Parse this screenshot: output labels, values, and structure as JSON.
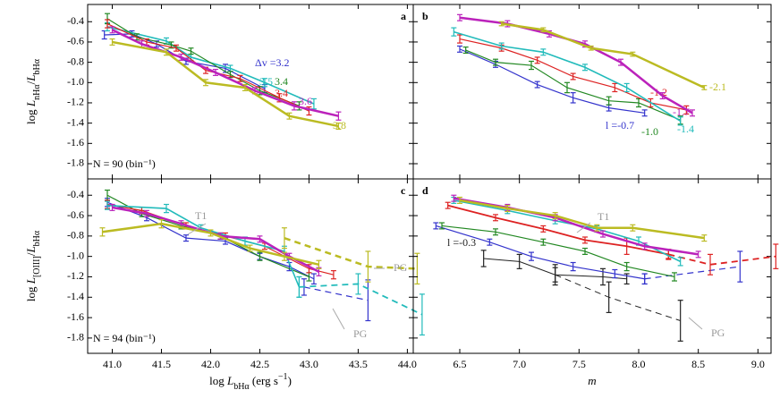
{
  "chart_data": [
    {
      "type": "line",
      "label": "a",
      "note": "N = 90 (bin⁻¹)",
      "ylim": [
        -1.95,
        -0.23
      ],
      "xlim": [
        40.75,
        44.06
      ],
      "yticks": [
        -0.4,
        -0.6,
        -0.8,
        {
          "value": -1.0,
          "label": "-1.0"
        },
        -1.2,
        -1.4,
        -1.6,
        -1.8
      ],
      "ylabel": [
        "log ",
        "L",
        "nHα",
        "/",
        "L",
        "bHα"
      ],
      "series": [
        {
          "name": "Δv =3.2",
          "color": "#3333cc",
          "linewidth": 1.2,
          "x": [
            40.92,
            41.2,
            41.45,
            41.75,
            42.15,
            42.55
          ],
          "values": [
            -0.53,
            -0.52,
            -0.62,
            -0.79,
            -0.86,
            -1.06
          ],
          "errors": [
            0.04,
            0.03,
            0.03,
            0.03,
            0.04,
            0.04
          ]
        },
        {
          "name": "3.5",
          "color": "#22bbbb",
          "linewidth": 1.6,
          "x": [
            40.95,
            41.55,
            41.8,
            42.2,
            42.55,
            43.05
          ],
          "values": [
            -0.45,
            -0.59,
            -0.75,
            -0.86,
            -1.0,
            -1.21
          ],
          "errors": [
            0.04,
            0.03,
            0.03,
            0.03,
            0.04,
            0.05
          ]
        },
        {
          "name": "3.4",
          "color": "#228822",
          "linewidth": 1.2,
          "x": [
            40.95,
            41.25,
            41.6,
            41.8,
            42.2,
            42.5,
            42.9
          ],
          "values": [
            -0.37,
            -0.55,
            -0.63,
            -0.69,
            -0.92,
            -1.08,
            -1.23
          ],
          "errors": [
            0.05,
            0.03,
            0.03,
            0.03,
            0.03,
            0.04,
            0.04
          ]
        },
        {
          "name": "3.4",
          "color": "#dd2222",
          "linewidth": 1.2,
          "x": [
            40.95,
            41.35,
            41.65,
            41.95,
            42.3,
            42.7,
            43.0
          ],
          "values": [
            -0.42,
            -0.6,
            -0.66,
            -0.88,
            -0.96,
            -1.15,
            -1.28
          ],
          "errors": [
            0.04,
            0.03,
            0.03,
            0.03,
            0.03,
            0.04,
            0.04
          ]
        },
        {
          "name": "3.6",
          "color": "#bb22bb",
          "linewidth": 2.5,
          "x": [
            41.0,
            41.3,
            41.7,
            42.05,
            42.45,
            42.85,
            43.3
          ],
          "values": [
            -0.48,
            -0.62,
            -0.75,
            -0.9,
            -1.08,
            -1.23,
            -1.33
          ],
          "errors": [
            0.03,
            0.03,
            0.03,
            0.03,
            0.03,
            0.04,
            0.04
          ]
        },
        {
          "name": "3.8",
          "color": "#bbbb22",
          "linewidth": 2.5,
          "x": [
            41.0,
            41.55,
            41.95,
            42.35,
            42.8,
            43.3
          ],
          "values": [
            -0.6,
            -0.7,
            -1.0,
            -1.05,
            -1.33,
            -1.43
          ],
          "errors": [
            0.03,
            0.03,
            0.03,
            0.03,
            0.03,
            0.03
          ]
        }
      ]
    },
    {
      "type": "line",
      "label": "b",
      "ylim": [
        -1.95,
        -0.23
      ],
      "xlim": [
        6.11,
        9.11
      ],
      "series": [
        {
          "name": "l =-0.7",
          "color": "#3333cc",
          "linewidth": 1.2,
          "x": [
            6.5,
            6.8,
            7.15,
            7.45,
            7.75,
            8.05
          ],
          "values": [
            -0.67,
            -0.82,
            -1.02,
            -1.15,
            -1.25,
            -1.3
          ],
          "errors": [
            0.03,
            0.03,
            0.03,
            0.05,
            0.03,
            0.03
          ]
        },
        {
          "name": "-1.0",
          "color": "#228822",
          "linewidth": 1.2,
          "x": [
            6.55,
            6.8,
            7.1,
            7.4,
            7.75,
            8.0,
            8.35
          ],
          "values": [
            -0.68,
            -0.8,
            -0.83,
            -1.05,
            -1.18,
            -1.2,
            -1.37
          ],
          "errors": [
            0.03,
            0.03,
            0.04,
            0.05,
            0.04,
            0.04,
            0.04
          ]
        },
        {
          "name": "-1.2",
          "color": "#dd2222",
          "linewidth": 1.2,
          "x": [
            6.5,
            6.85,
            7.15,
            7.45,
            7.8,
            8.1,
            8.4
          ],
          "values": [
            -0.57,
            -0.66,
            -0.78,
            -0.94,
            -1.05,
            -1.2,
            -1.27
          ],
          "errors": [
            0.04,
            0.03,
            0.03,
            0.03,
            0.04,
            0.04,
            0.04
          ]
        },
        {
          "name": "-1.4",
          "color": "#22bbbb",
          "linewidth": 1.6,
          "x": [
            6.45,
            6.85,
            7.2,
            7.55,
            7.9,
            8.35
          ],
          "values": [
            -0.5,
            -0.64,
            -0.7,
            -0.85,
            -1.05,
            -1.38
          ],
          "errors": [
            0.04,
            0.03,
            0.03,
            0.03,
            0.04,
            0.04
          ]
        },
        {
          "name": "-1.7",
          "color": "#bb22bb",
          "linewidth": 2.5,
          "x": [
            6.5,
            6.9,
            7.25,
            7.55,
            7.85,
            8.2,
            8.45
          ],
          "values": [
            -0.36,
            -0.42,
            -0.52,
            -0.62,
            -0.8,
            -1.13,
            -1.3
          ],
          "errors": [
            0.03,
            0.03,
            0.03,
            0.03,
            0.03,
            0.03,
            0.03
          ]
        },
        {
          "name": "-2.1",
          "color": "#bbbb22",
          "linewidth": 2.5,
          "x": [
            6.85,
            7.2,
            7.6,
            7.95,
            8.55
          ],
          "values": [
            -0.42,
            -0.48,
            -0.66,
            -0.72,
            -1.05
          ],
          "errors": [
            0.02,
            0.02,
            0.02,
            0.02,
            0.02
          ]
        }
      ]
    },
    {
      "type": "line",
      "label": "c",
      "note": "N = 94 (bin⁻¹)",
      "ylim": [
        -1.95,
        -0.24
      ],
      "xlim": [
        40.75,
        44.06
      ],
      "yticks": [
        -0.4,
        -0.6,
        -0.8,
        {
          "value": -1.0,
          "label": "-1.0"
        },
        -1.2,
        -1.4,
        -1.6,
        -1.8
      ],
      "xticks": [
        {
          "value": 41,
          "label": "41.0"
        },
        41.5,
        {
          "value": 42,
          "label": "42.0"
        },
        42.5,
        {
          "value": 43,
          "label": "43.0"
        },
        43.5,
        {
          "value": 44,
          "label": "44.0"
        }
      ],
      "ylabel": [
        "log ",
        "L",
        "[OIII]",
        "/",
        "L",
        "bHα"
      ],
      "xlabel": [
        "log ",
        "L",
        "bHα",
        " (erg s",
        "−1",
        ")"
      ],
      "annotations": [
        "T1",
        "PG",
        "PG"
      ],
      "series": [
        {
          "color": "#3333cc",
          "linewidth": 1.2,
          "x": [
            40.95,
            41.35,
            41.75,
            42.15,
            42.5,
            42.8,
            43.05
          ],
          "values": [
            -0.47,
            -0.62,
            -0.82,
            -0.85,
            -1.0,
            -1.1,
            -1.22
          ],
          "errors": [
            0.04,
            0.03,
            0.03,
            0.03,
            0.03,
            0.04,
            0.05
          ]
        },
        {
          "color": "#3333cc",
          "linewidth": 1.2,
          "dashed": true,
          "x": [
            42.95,
            43.6
          ],
          "values": [
            -1.3,
            -1.43
          ],
          "errors": [
            0.08,
            0.2
          ]
        },
        {
          "color": "#228822",
          "linewidth": 1.2,
          "x": [
            40.95,
            41.3,
            41.7,
            42.1,
            42.5,
            43.0
          ],
          "values": [
            -0.4,
            -0.58,
            -0.7,
            -0.8,
            -1.0,
            -1.2
          ],
          "errors": [
            0.05,
            0.03,
            0.03,
            0.03,
            0.04,
            0.04
          ]
        },
        {
          "color": "#dd2222",
          "linewidth": 1.2,
          "x": [
            40.95,
            41.3,
            41.75,
            42.15,
            42.55,
            43.0,
            43.25
          ],
          "values": [
            -0.49,
            -0.55,
            -0.7,
            -0.8,
            -0.9,
            -1.12,
            -1.18
          ],
          "errors": [
            0.04,
            0.03,
            0.03,
            0.03,
            0.03,
            0.04,
            0.04
          ]
        },
        {
          "color": "#22bbbb",
          "linewidth": 1.6,
          "x": [
            40.95,
            41.55,
            41.9,
            42.35,
            42.75,
            42.9
          ],
          "values": [
            -0.5,
            -0.53,
            -0.72,
            -0.85,
            -0.95,
            -1.3
          ],
          "errors": [
            0.04,
            0.04,
            0.03,
            0.04,
            0.05,
            0.1
          ]
        },
        {
          "color": "#22bbbb",
          "linewidth": 1.8,
          "dashed": true,
          "x": [
            42.9,
            43.5,
            44.15
          ],
          "values": [
            -1.3,
            -1.27,
            -1.57
          ],
          "errors": [
            0.1,
            0.1,
            0.2
          ]
        },
        {
          "color": "#bb22bb",
          "linewidth": 2.5,
          "x": [
            41.0,
            41.35,
            41.7,
            42.1,
            42.5,
            42.8,
            43.1
          ],
          "values": [
            -0.52,
            -0.58,
            -0.68,
            -0.8,
            -0.83,
            -1.0,
            -1.15
          ],
          "errors": [
            0.03,
            0.03,
            0.03,
            0.03,
            0.03,
            0.03,
            0.04
          ]
        },
        {
          "color": "#bbbb22",
          "linewidth": 2.5,
          "x": [
            40.9,
            41.5,
            42.0,
            42.4,
            42.75,
            43.1
          ],
          "values": [
            -0.76,
            -0.68,
            -0.77,
            -0.92,
            -1.0,
            -1.08
          ],
          "errors": [
            0.04,
            0.04,
            0.03,
            0.03,
            0.04,
            0.04
          ]
        },
        {
          "color": "#bbbb22",
          "linewidth": 2.5,
          "dashed": true,
          "x": [
            42.75,
            43.6,
            44.1
          ],
          "values": [
            -0.82,
            -1.1,
            -1.12
          ],
          "errors": [
            0.1,
            0.15,
            0.15
          ]
        }
      ]
    },
    {
      "type": "line",
      "label": "d",
      "ylim": [
        -1.95,
        -0.24
      ],
      "xlim": [
        6.11,
        9.11
      ],
      "xticks": [
        6.5,
        {
          "value": 7,
          "label": "7.0"
        },
        7.5,
        {
          "value": 8,
          "label": "8.0"
        },
        8.5,
        {
          "value": 9,
          "label": "9.0"
        }
      ],
      "xlabel": [
        "m"
      ],
      "annotations": [
        "T1",
        "PG"
      ],
      "series": [
        {
          "name": "l =-0.3",
          "color": "#222222",
          "linewidth": 1,
          "x": [
            6.7,
            7.0,
            7.3,
            7.7,
            7.9
          ],
          "values": [
            -1.02,
            -1.05,
            -1.18,
            -1.2,
            -1.22
          ],
          "errors": [
            0.08,
            0.07,
            0.07,
            0.08,
            0.05
          ]
        },
        {
          "color": "#222222",
          "linewidth": 1,
          "dashed": true,
          "x": [
            7.3,
            7.75,
            8.35
          ],
          "values": [
            -1.18,
            -1.4,
            -1.63
          ],
          "errors": [
            0.1,
            0.15,
            0.2
          ]
        },
        {
          "color": "#3333cc",
          "linewidth": 1.2,
          "x": [
            6.3,
            6.75,
            7.1,
            7.45,
            7.8,
            8.05
          ],
          "values": [
            -0.7,
            -0.86,
            -1.0,
            -1.1,
            -1.17,
            -1.22
          ],
          "errors": [
            0.03,
            0.03,
            0.04,
            0.04,
            0.04,
            0.05
          ]
        },
        {
          "color": "#3333cc",
          "linewidth": 1.2,
          "dashed": true,
          "x": [
            8.05,
            8.85
          ],
          "values": [
            -1.22,
            -1.1
          ],
          "errors": [
            0.05,
            0.15
          ]
        },
        {
          "color": "#228822",
          "linewidth": 1.2,
          "x": [
            6.35,
            6.8,
            7.2,
            7.55,
            7.9,
            8.3
          ],
          "values": [
            -0.7,
            -0.76,
            -0.86,
            -0.95,
            -1.1,
            -1.2
          ],
          "errors": [
            0.03,
            0.03,
            0.03,
            0.03,
            0.04,
            0.04
          ]
        },
        {
          "color": "#dd2222",
          "linewidth": 1.8,
          "x": [
            6.4,
            6.8,
            7.2,
            7.55,
            7.9,
            8.25
          ],
          "values": [
            -0.5,
            -0.62,
            -0.73,
            -0.84,
            -0.9,
            -0.98
          ],
          "errors": [
            0.03,
            0.03,
            0.03,
            0.03,
            0.08,
            0.04
          ]
        },
        {
          "color": "#dd2222",
          "linewidth": 1.8,
          "dashed": true,
          "x": [
            8.25,
            8.6,
            9.15
          ],
          "values": [
            -0.98,
            -1.08,
            -1.0
          ],
          "errors": [
            0.05,
            0.1,
            0.12
          ]
        },
        {
          "color": "#22bbbb",
          "linewidth": 1.6,
          "x": [
            6.45,
            6.9,
            7.3,
            7.65,
            8.0,
            8.35
          ],
          "values": [
            -0.45,
            -0.55,
            -0.65,
            -0.73,
            -0.85,
            -1.05
          ],
          "errors": [
            0.03,
            0.03,
            0.03,
            0.03,
            0.04,
            0.04
          ]
        },
        {
          "color": "#bb22bb",
          "linewidth": 2.5,
          "x": [
            6.45,
            6.9,
            7.3,
            7.7,
            8.05,
            8.5
          ],
          "values": [
            -0.43,
            -0.52,
            -0.62,
            -0.78,
            -0.9,
            -0.98
          ],
          "errors": [
            0.03,
            0.03,
            0.03,
            0.03,
            0.03,
            0.03
          ]
        },
        {
          "color": "#bbbb22",
          "linewidth": 2.5,
          "x": [
            6.5,
            6.9,
            7.3,
            7.65,
            7.95,
            8.55
          ],
          "values": [
            -0.45,
            -0.53,
            -0.6,
            -0.72,
            -0.72,
            -0.82
          ],
          "errors": [
            0.03,
            0.03,
            0.03,
            0.03,
            0.03,
            0.03
          ]
        }
      ]
    }
  ]
}
